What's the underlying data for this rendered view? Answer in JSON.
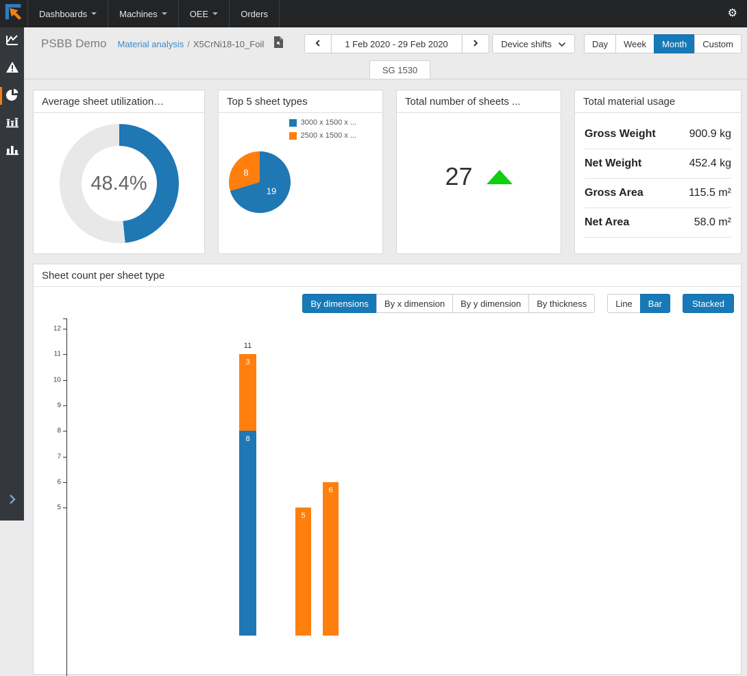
{
  "accent": "#1779b8",
  "navbar": {
    "items": [
      {
        "label": "Dashboards",
        "caret": true
      },
      {
        "label": "Machines",
        "caret": true
      },
      {
        "label": "OEE",
        "caret": true
      },
      {
        "label": "Orders",
        "caret": false
      }
    ],
    "gear_icon": "settings"
  },
  "header": {
    "dashboard_title": "PSBB Demo",
    "breadcrumb": {
      "section": "Material analysis",
      "separator": "/",
      "current": "X5CrNi18-10_Foil"
    },
    "date_nav": {
      "prev": "previous period",
      "range": "1 Feb 2020 - 29 Feb 2020",
      "next": "next period"
    },
    "device_shifts_label": "Device shifts",
    "periods": [
      {
        "label": "Day",
        "active": false
      },
      {
        "label": "Week",
        "active": false
      },
      {
        "label": "Month",
        "active": true
      },
      {
        "label": "Custom",
        "active": false
      }
    ]
  },
  "tabs": {
    "active": "SG 1530"
  },
  "cards": {
    "utilization": {
      "title": "Average sheet utilization…",
      "value_label": "48.4%"
    },
    "top5": {
      "title": "Top 5 sheet types",
      "legend": [
        "3000 x 1500 x ...",
        "2500 x 1500 x ..."
      ]
    },
    "total_sheets": {
      "title": "Total number of sheets ...",
      "value": "27",
      "trend": "up"
    },
    "material_usage": {
      "title": "Total material usage",
      "rows": [
        {
          "label": "Gross Weight",
          "value": "900.9 kg"
        },
        {
          "label": "Net Weight",
          "value": "452.4 kg"
        },
        {
          "label": "Gross Area",
          "value": "115.5 m²"
        },
        {
          "label": "Net Area",
          "value": "58.0 m²"
        }
      ]
    }
  },
  "chart_card": {
    "title": "Sheet count per sheet type",
    "filters": [
      {
        "label": "By dimensions",
        "active": true
      },
      {
        "label": "By x dimension",
        "active": false
      },
      {
        "label": "By y dimension",
        "active": false
      },
      {
        "label": "By thickness",
        "active": false
      }
    ],
    "types": [
      {
        "label": "Line",
        "active": false
      },
      {
        "label": "Bar",
        "active": true
      }
    ],
    "stacked_label": "Stacked",
    "stacked_active": true
  },
  "chart_data": [
    {
      "type": "donut",
      "title": "Average sheet utilization…",
      "value": 48.4,
      "unit": "%",
      "color": "#1f77b4",
      "track_color": "#e8e8e8",
      "center_label": "48.4%"
    },
    {
      "type": "pie",
      "title": "Top 5 sheet types",
      "legend_position": "top-right",
      "slices": [
        {
          "name": "3000 x 1500 x ...",
          "value": 19,
          "label": "19",
          "color": "#1f77b4"
        },
        {
          "name": "2500 x 1500 x ...",
          "value": 8,
          "label": "8",
          "color": "#ff7f0e"
        }
      ]
    },
    {
      "type": "bar",
      "stacked": true,
      "title": "Sheet count per sheet type",
      "grid": false,
      "yticks": [
        12,
        11,
        10,
        9,
        8,
        7,
        6,
        5
      ],
      "ylim_visible": [
        4.5,
        12.5
      ],
      "series": [
        {
          "key": "series1",
          "name": "3000 x 1500 x ...",
          "color": "#1f77b4"
        },
        {
          "key": "series2",
          "name": "2500 x 1500 x ...",
          "color": "#ff7f0e"
        }
      ],
      "bars": [
        {
          "series1": 8,
          "series2": 3,
          "total_label": "11"
        },
        {
          "series1": 0,
          "series2": 5
        },
        {
          "series1": 0,
          "series2": 6
        }
      ]
    }
  ]
}
